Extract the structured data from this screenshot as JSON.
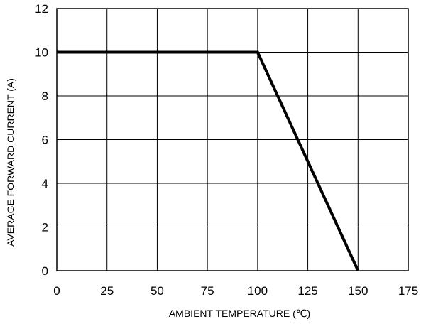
{
  "chart_data": {
    "type": "line",
    "title": "",
    "xlabel": "AMBIENT TEMPERATURE (℃)",
    "ylabel": "AVERAGE FORWARD CURRENT (A)",
    "xlim": [
      0,
      175
    ],
    "ylim": [
      0,
      12
    ],
    "xticks": [
      0,
      25,
      50,
      75,
      100,
      125,
      150,
      175
    ],
    "yticks": [
      0,
      2,
      4,
      6,
      8,
      10,
      12
    ],
    "grid": true,
    "series": [
      {
        "x": [
          0,
          100,
          150
        ],
        "y": [
          10,
          10,
          0
        ]
      }
    ],
    "colors": {
      "line": "#000000",
      "grid": "#000000",
      "background": "#ffffff"
    }
  }
}
